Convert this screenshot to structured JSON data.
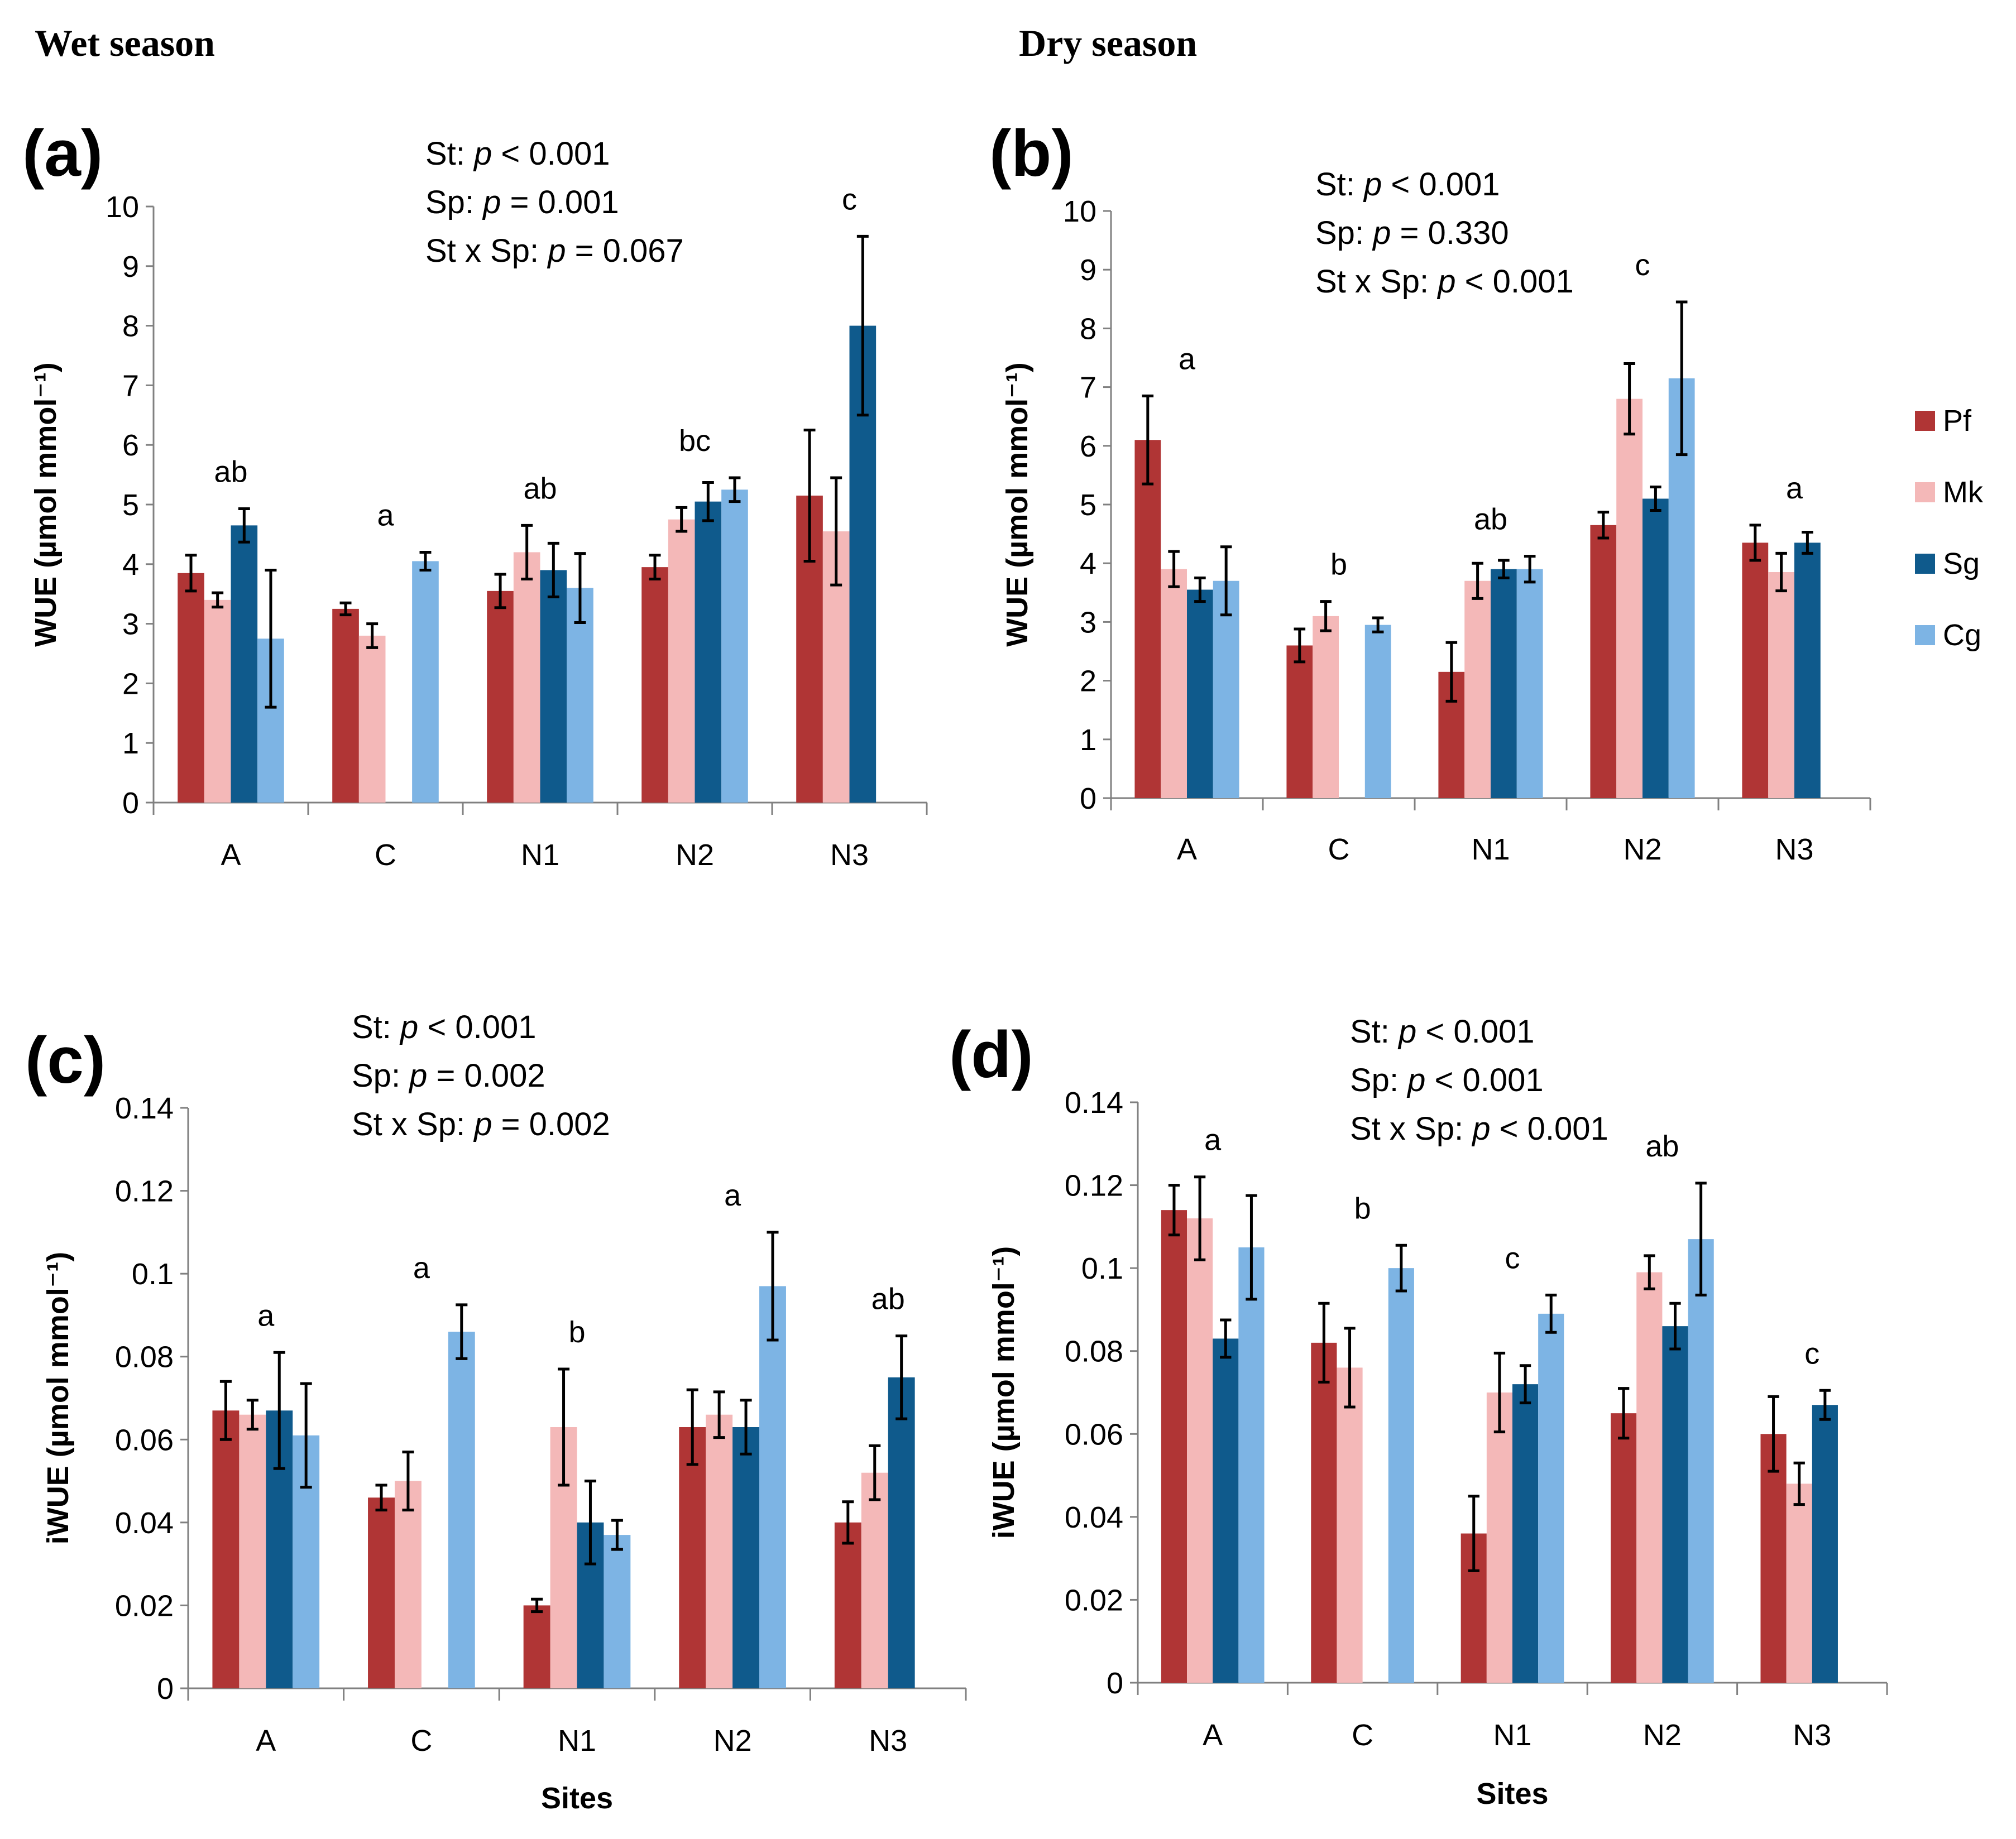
{
  "season_titles": {
    "wet": "Wet season",
    "dry": "Dry season"
  },
  "legend": [
    {
      "name": "Pf",
      "color": "#b03535"
    },
    {
      "name": "Mk",
      "color": "#f4b8b8"
    },
    {
      "name": "Sg",
      "color": "#0f5a8c"
    },
    {
      "name": "Cg",
      "color": "#7db4e4"
    }
  ],
  "x_label": "Sites",
  "chart_data": [
    {
      "id": "a",
      "type": "bar",
      "label": "(a)",
      "ylabel": "WUE (µmol mmol⁻¹)",
      "ylim": [
        0,
        10
      ],
      "yticks": [
        "0",
        "1",
        "2",
        "3",
        "4",
        "5",
        "6",
        "7",
        "8",
        "9",
        "10"
      ],
      "categories": [
        "A",
        "C",
        "N1",
        "N2",
        "N3"
      ],
      "series": [
        {
          "name": "Pf",
          "values": [
            3.85,
            3.25,
            3.55,
            3.95,
            5.15
          ],
          "errors": [
            0.3,
            0.1,
            0.28,
            0.2,
            1.1
          ]
        },
        {
          "name": "Mk",
          "values": [
            3.4,
            2.8,
            4.2,
            4.75,
            4.55
          ],
          "errors": [
            0.12,
            0.2,
            0.45,
            0.2,
            0.9
          ]
        },
        {
          "name": "Sg",
          "values": [
            4.65,
            null,
            3.9,
            5.05,
            8.0
          ],
          "errors": [
            0.28,
            null,
            0.45,
            0.32,
            1.5
          ]
        },
        {
          "name": "Cg",
          "values": [
            2.75,
            4.05,
            3.6,
            5.25,
            null
          ],
          "errors": [
            1.15,
            0.15,
            0.58,
            0.2,
            null
          ]
        }
      ],
      "letters": [
        "ab",
        "a",
        "ab",
        "bc",
        "c"
      ],
      "stats": [
        "St: p < 0.001",
        "Sp: p = 0.001",
        "St x Sp: p = 0.067"
      ]
    },
    {
      "id": "b",
      "type": "bar",
      "label": "(b)",
      "ylabel": "WUE (µmol mmol⁻¹)",
      "ylim": [
        0,
        10
      ],
      "yticks": [
        "0",
        "1",
        "2",
        "3",
        "4",
        "5",
        "6",
        "7",
        "8",
        "9",
        "10"
      ],
      "categories": [
        "A",
        "C",
        "N1",
        "N2",
        "N3"
      ],
      "series": [
        {
          "name": "Pf",
          "values": [
            6.1,
            2.6,
            2.15,
            4.65,
            4.35
          ],
          "errors": [
            0.75,
            0.28,
            0.5,
            0.22,
            0.3
          ]
        },
        {
          "name": "Mk",
          "values": [
            3.9,
            3.1,
            3.7,
            6.8,
            3.85
          ],
          "errors": [
            0.3,
            0.25,
            0.3,
            0.6,
            0.32
          ]
        },
        {
          "name": "Sg",
          "values": [
            3.55,
            null,
            3.9,
            5.1,
            4.35
          ],
          "errors": [
            0.2,
            null,
            0.15,
            0.2,
            0.18
          ]
        },
        {
          "name": "Cg",
          "values": [
            3.7,
            2.95,
            3.9,
            7.15,
            null
          ],
          "errors": [
            0.58,
            0.12,
            0.22,
            1.3,
            null
          ]
        }
      ],
      "letters": [
        "a",
        "b",
        "ab",
        "c",
        "a"
      ],
      "stats": [
        "St: p < 0.001",
        "Sp: p = 0.330",
        "St x Sp: p < 0.001"
      ]
    },
    {
      "id": "c",
      "type": "bar",
      "label": "(c)",
      "ylabel": "iWUE (µmol mmol⁻¹)",
      "ylim": [
        0,
        0.14
      ],
      "yticks": [
        "0",
        "0.02",
        "0.04",
        "0.06",
        "0.08",
        "0.1",
        "0.12",
        "0.14"
      ],
      "categories": [
        "A",
        "C",
        "N1",
        "N2",
        "N3"
      ],
      "series": [
        {
          "name": "Pf",
          "values": [
            0.067,
            0.046,
            0.02,
            0.063,
            0.04
          ],
          "errors": [
            0.007,
            0.003,
            0.0015,
            0.009,
            0.005
          ]
        },
        {
          "name": "Mk",
          "values": [
            0.066,
            0.05,
            0.063,
            0.066,
            0.052
          ],
          "errors": [
            0.0035,
            0.007,
            0.014,
            0.0055,
            0.0065
          ]
        },
        {
          "name": "Sg",
          "values": [
            0.067,
            null,
            0.04,
            0.063,
            0.075
          ],
          "errors": [
            0.014,
            null,
            0.01,
            0.0065,
            0.01
          ]
        },
        {
          "name": "Cg",
          "values": [
            0.061,
            0.086,
            0.037,
            0.097,
            null
          ],
          "errors": [
            0.0125,
            0.0065,
            0.0035,
            0.013,
            null
          ]
        }
      ],
      "letters": [
        "a",
        "a",
        "b",
        "a",
        "ab"
      ],
      "stats": [
        "St: p < 0.001",
        "Sp: p = 0.002",
        "St x Sp: p = 0.002"
      ]
    },
    {
      "id": "d",
      "type": "bar",
      "label": "(d)",
      "ylabel": "iWUE (µmol mmol⁻¹)",
      "ylim": [
        0,
        0.14
      ],
      "yticks": [
        "0",
        "0.02",
        "0.04",
        "0.06",
        "0.08",
        "0.1",
        "0.12",
        "0.14"
      ],
      "categories": [
        "A",
        "C",
        "N1",
        "N2",
        "N3"
      ],
      "series": [
        {
          "name": "Pf",
          "values": [
            0.114,
            0.082,
            0.036,
            0.065,
            0.06
          ],
          "errors": [
            0.006,
            0.0095,
            0.009,
            0.006,
            0.009
          ]
        },
        {
          "name": "Mk",
          "values": [
            0.112,
            0.076,
            0.07,
            0.099,
            0.048
          ],
          "errors": [
            0.01,
            0.0095,
            0.0095,
            0.004,
            0.005
          ]
        },
        {
          "name": "Sg",
          "values": [
            0.083,
            null,
            0.072,
            0.086,
            0.067
          ],
          "errors": [
            0.0045,
            null,
            0.0045,
            0.0055,
            0.0035
          ]
        },
        {
          "name": "Cg",
          "values": [
            0.105,
            0.1,
            0.089,
            0.107,
            null
          ],
          "errors": [
            0.0125,
            0.0055,
            0.0045,
            0.0135,
            null
          ]
        }
      ],
      "letters": [
        "a",
        "b",
        "c",
        "ab",
        "c"
      ],
      "stats": [
        "St: p < 0.001",
        "Sp: p < 0.001",
        "St x Sp: p < 0.001"
      ]
    }
  ]
}
